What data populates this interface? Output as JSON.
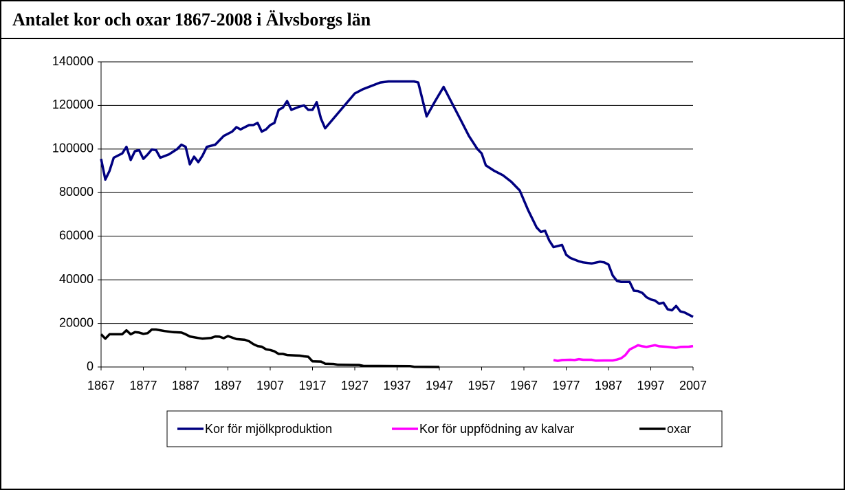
{
  "chart_data": {
    "type": "line",
    "title": "Antalet kor och oxar 1867-2008 i Älvsborgs län",
    "xlim": [
      1867,
      2007
    ],
    "xticks": [
      1867,
      1877,
      1887,
      1897,
      1907,
      1917,
      1927,
      1937,
      1947,
      1957,
      1967,
      1977,
      1987,
      1997,
      2007
    ],
    "ylim": [
      0,
      140000
    ],
    "yticks": [
      0,
      20000,
      40000,
      60000,
      80000,
      100000,
      120000,
      140000
    ],
    "grid": true,
    "legend": "bottom",
    "series": [
      {
        "name": "Kor för mjölkproduktion",
        "color": "#000080",
        "x": [
          1867,
          1868,
          1869,
          1870,
          1872,
          1873,
          1874,
          1875,
          1876,
          1877,
          1878,
          1879,
          1880,
          1881,
          1883,
          1885,
          1886,
          1887,
          1888,
          1889,
          1890,
          1891,
          1892,
          1894,
          1896,
          1898,
          1899,
          1900,
          1901,
          1902,
          1903,
          1904,
          1905,
          1906,
          1907,
          1908,
          1909,
          1910,
          1911,
          1912,
          1914,
          1915,
          1916,
          1917,
          1918,
          1919,
          1920,
          1927,
          1929,
          1931,
          1933,
          1935,
          1941,
          1942,
          1944,
          1946,
          1948,
          1950,
          1952,
          1954,
          1956,
          1957,
          1958,
          1960,
          1962,
          1964,
          1966,
          1968,
          1970,
          1971,
          1972,
          1973,
          1974,
          1976,
          1977,
          1978,
          1980,
          1981,
          1983,
          1985,
          1986,
          1987,
          1988,
          1989,
          1990,
          1992,
          1993,
          1994,
          1995,
          1996,
          1997,
          1998,
          1999,
          2000,
          2001,
          2002,
          2003,
          2004,
          2005,
          2006,
          2007
        ],
        "values": [
          95500,
          86000,
          90000,
          96000,
          98000,
          101000,
          95000,
          99000,
          99500,
          95500,
          97500,
          99800,
          99500,
          96000,
          97500,
          100000,
          102000,
          101000,
          93000,
          96500,
          94000,
          97000,
          101000,
          102000,
          106000,
          108000,
          110000,
          109000,
          110000,
          111000,
          111000,
          112000,
          108000,
          109000,
          111000,
          112000,
          118000,
          119000,
          122000,
          118000,
          119500,
          120000,
          118000,
          118000,
          121500,
          114000,
          109500,
          125500,
          127500,
          129000,
          130500,
          131000,
          131000,
          130500,
          115000,
          122000,
          128500,
          121000,
          113500,
          106000,
          100000,
          98000,
          92500,
          90000,
          88000,
          85000,
          81000,
          72000,
          64000,
          62000,
          62500,
          58000,
          55000,
          56000,
          51500,
          50000,
          48500,
          48000,
          47500,
          48300,
          48000,
          47000,
          42000,
          39500,
          39000,
          39000,
          35000,
          34800,
          34000,
          32000,
          31000,
          30500,
          29000,
          29500,
          26500,
          26000,
          28000,
          25500,
          25000,
          24000,
          23000
        ]
      },
      {
        "name": "Kor för uppfödning av kalvar",
        "color": "#ff00ff",
        "x": [
          1974,
          1975,
          1976,
          1978,
          1979,
          1980,
          1981,
          1983,
          1984,
          1986,
          1988,
          1989,
          1990,
          1991,
          1992,
          1993,
          1994,
          1995,
          1996,
          1998,
          1999,
          2001,
          2002,
          2003,
          2004,
          2006,
          2007
        ],
        "values": [
          3200,
          2800,
          3200,
          3300,
          3200,
          3600,
          3300,
          3300,
          2900,
          3000,
          3000,
          3400,
          4000,
          5500,
          8000,
          9000,
          10000,
          9500,
          9200,
          10000,
          9500,
          9200,
          9000,
          8800,
          9200,
          9300,
          9600
        ]
      },
      {
        "name": "oxar",
        "color": "#000000",
        "x": [
          1867,
          1868,
          1869,
          1872,
          1873,
          1874,
          1875,
          1876,
          1877,
          1878,
          1879,
          1880,
          1882,
          1884,
          1886,
          1887,
          1888,
          1890,
          1891,
          1893,
          1894,
          1895,
          1896,
          1897,
          1899,
          1901,
          1902,
          1903,
          1904,
          1905,
          1906,
          1907,
          1908,
          1909,
          1910,
          1911,
          1913,
          1914,
          1915,
          1916,
          1917,
          1919,
          1920,
          1922,
          1923,
          1928,
          1929,
          1940,
          1941,
          1947
        ],
        "values": [
          15000,
          13000,
          15000,
          15000,
          16800,
          15000,
          16000,
          15800,
          15200,
          15500,
          17200,
          17200,
          16500,
          16000,
          15800,
          15000,
          14000,
          13300,
          13000,
          13300,
          14000,
          13900,
          13200,
          14200,
          12800,
          12500,
          11800,
          10500,
          9600,
          9300,
          8100,
          7800,
          7200,
          6000,
          6000,
          5500,
          5300,
          5200,
          4900,
          4700,
          2600,
          2500,
          1500,
          1400,
          1000,
          900,
          500,
          400,
          100,
          0
        ]
      }
    ]
  }
}
